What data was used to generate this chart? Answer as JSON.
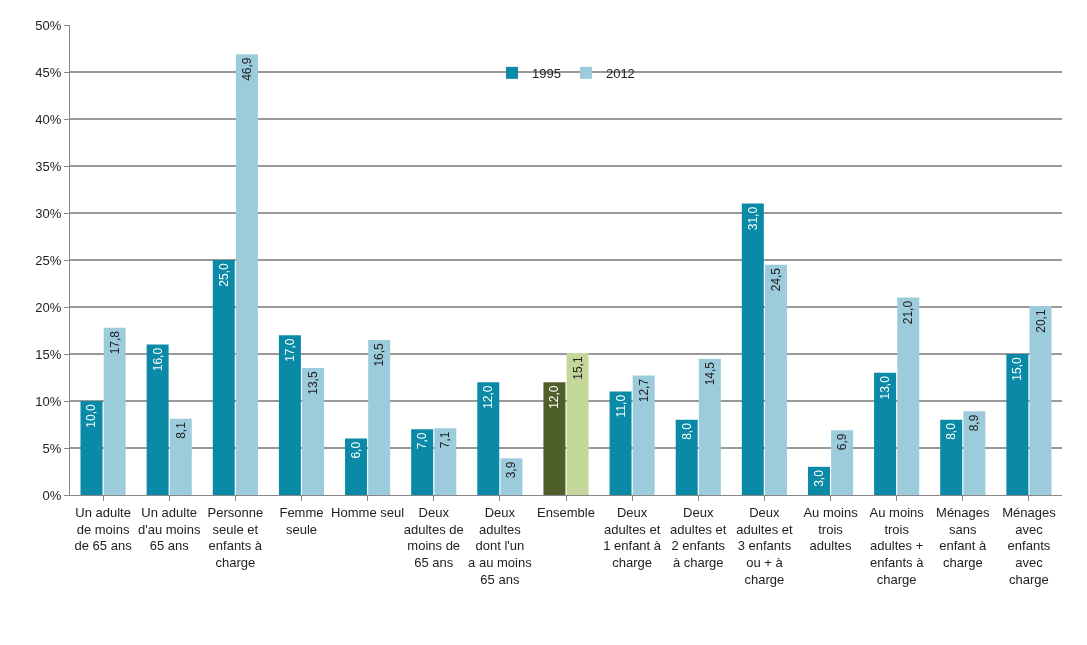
{
  "chart_data": {
    "type": "bar",
    "categories": [
      "Un adulte de moins de 65 ans",
      "Un adulte d'au moins 65 ans",
      "Personne seule et enfants à charge",
      "Femme seule",
      "Homme seul",
      "Deux adultes de moins de 65 ans",
      "Deux adultes dont l'un a au moins 65 ans",
      "Ensemble",
      "Deux adultes et 1 enfant à charge",
      "Deux adultes et 2 enfants à charge",
      "Deux adultes et 3 enfants ou + à charge",
      "Au moins trois adultes",
      "Au moins trois adultes + enfants à charge",
      "Ménages sans enfant à charge",
      "Ménages avec enfants avec charge"
    ],
    "series": [
      {
        "name": "1995",
        "color": "#0a8aa6",
        "colors": [
          null,
          null,
          null,
          null,
          null,
          null,
          null,
          "#4f5f2a",
          null,
          null,
          null,
          null,
          null,
          null,
          null
        ],
        "values": [
          10.0,
          16.0,
          25.0,
          17.0,
          6.0,
          7.0,
          12.0,
          12.0,
          11.0,
          8.0,
          31.0,
          3.0,
          13.0,
          8.0,
          15.0
        ],
        "value_labels": [
          "10,0",
          "16,0",
          "25,0",
          "17,0",
          "6,0",
          "7,0",
          "12,0",
          "12,0",
          "11,0",
          "8,0",
          "31,0",
          "3,0",
          "13,0",
          "8,0",
          "15,0"
        ]
      },
      {
        "name": "2012",
        "color": "#9ccbdc",
        "colors": [
          null,
          null,
          null,
          null,
          null,
          null,
          null,
          "#c4d79b",
          null,
          null,
          null,
          null,
          null,
          null,
          null
        ],
        "values": [
          17.8,
          8.1,
          46.9,
          13.5,
          16.5,
          7.1,
          3.9,
          15.1,
          12.7,
          14.5,
          24.5,
          6.9,
          21.0,
          8.9,
          20.1
        ],
        "value_labels": [
          "17,8",
          "8,1",
          "46,9",
          "13,5",
          "16,5",
          "7,1",
          "3,9",
          "15,1",
          "12,7",
          "14,5",
          "24,5",
          "6,9",
          "21,0",
          "8,9",
          "20,1"
        ]
      }
    ],
    "ylim": [
      0,
      50
    ],
    "yticks": [
      {
        "value": 0,
        "label": "0%"
      },
      {
        "value": 5,
        "label": "5%"
      },
      {
        "value": 10,
        "label": "10%"
      },
      {
        "value": 15,
        "label": "15%"
      },
      {
        "value": 20,
        "label": "20%"
      },
      {
        "value": 25,
        "label": "25%"
      },
      {
        "value": 30,
        "label": "30%"
      },
      {
        "value": 35,
        "label": "35%"
      },
      {
        "value": 40,
        "label": "40%"
      },
      {
        "value": 45,
        "label": "45%"
      },
      {
        "value": 50,
        "label": "50%"
      }
    ],
    "grid": "y",
    "legend": "top"
  }
}
